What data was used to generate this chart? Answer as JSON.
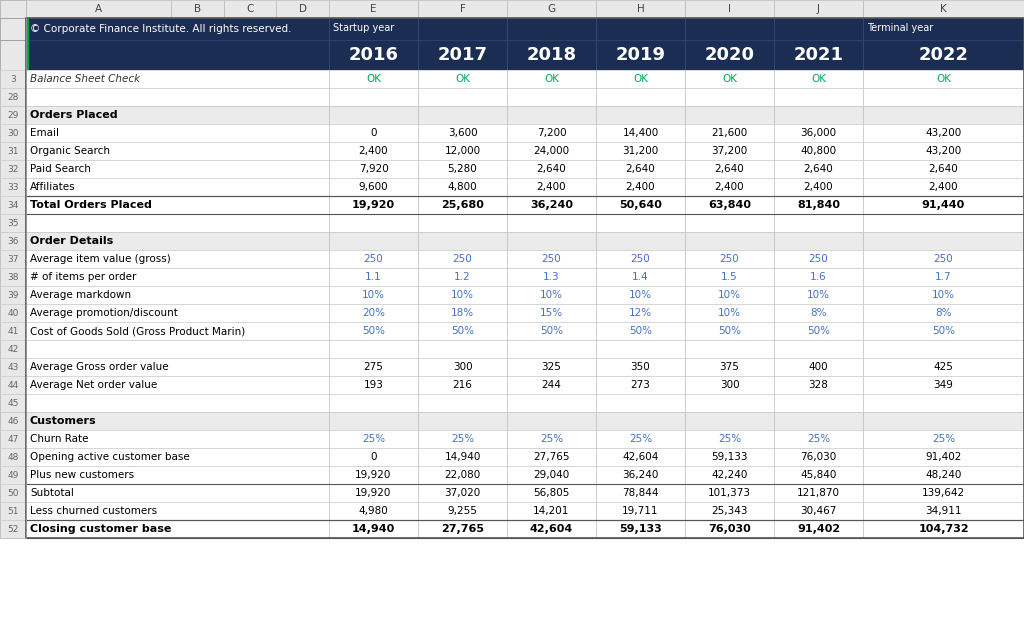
{
  "header_bg": "#1b2d53",
  "ok_color": "#00aa55",
  "blue_color": "#4472c4",
  "col_letters": [
    "A",
    "B",
    "C",
    "D",
    "E",
    "F",
    "G",
    "H",
    "I",
    "J",
    "K"
  ],
  "copyright": "© Corporate Finance Institute. All rights reserved.",
  "startup_label": "Startup year",
  "terminal_label": "Terminal year",
  "rows": [
    {
      "row": "1",
      "label": "",
      "type": "header_top",
      "values": [
        "",
        "",
        "",
        "",
        "",
        "",
        ""
      ]
    },
    {
      "row": "2",
      "label": "",
      "type": "header_years",
      "values": [
        "2016",
        "2017",
        "2018",
        "2019",
        "2020",
        "2021",
        "2022"
      ]
    },
    {
      "row": "3",
      "label": "Balance Sheet Check",
      "type": "ok_row",
      "values": [
        "OK",
        "OK",
        "OK",
        "OK",
        "OK",
        "OK",
        "OK"
      ]
    },
    {
      "row": "28",
      "label": "",
      "type": "empty",
      "values": [
        "",
        "",
        "",
        "",
        "",
        "",
        ""
      ]
    },
    {
      "row": "29",
      "label": "Orders Placed",
      "type": "section_hdr",
      "values": [
        "",
        "",
        "",
        "",
        "",
        "",
        ""
      ]
    },
    {
      "row": "30",
      "label": "Email",
      "type": "normal",
      "values": [
        "0",
        "3,600",
        "7,200",
        "14,400",
        "21,600",
        "36,000",
        "43,200"
      ]
    },
    {
      "row": "31",
      "label": "Organic Search",
      "type": "normal",
      "values": [
        "2,400",
        "12,000",
        "24,000",
        "31,200",
        "37,200",
        "40,800",
        "43,200"
      ]
    },
    {
      "row": "32",
      "label": "Paid Search",
      "type": "normal",
      "values": [
        "7,920",
        "5,280",
        "2,640",
        "2,640",
        "2,640",
        "2,640",
        "2,640"
      ]
    },
    {
      "row": "33",
      "label": "Affiliates",
      "type": "normal_bb",
      "values": [
        "9,600",
        "4,800",
        "2,400",
        "2,400",
        "2,400",
        "2,400",
        "2,400"
      ]
    },
    {
      "row": "34",
      "label": "Total Orders Placed",
      "type": "total",
      "values": [
        "19,920",
        "25,680",
        "36,240",
        "50,640",
        "63,840",
        "81,840",
        "91,440"
      ]
    },
    {
      "row": "35",
      "label": "",
      "type": "empty",
      "values": [
        "",
        "",
        "",
        "",
        "",
        "",
        ""
      ]
    },
    {
      "row": "36",
      "label": "Order Details",
      "type": "section_hdr",
      "values": [
        "",
        "",
        "",
        "",
        "",
        "",
        ""
      ]
    },
    {
      "row": "37",
      "label": "Average item value (gross)",
      "type": "blue",
      "values": [
        "250",
        "250",
        "250",
        "250",
        "250",
        "250",
        "250"
      ]
    },
    {
      "row": "38",
      "label": "# of items per order",
      "type": "blue",
      "values": [
        "1.1",
        "1.2",
        "1.3",
        "1.4",
        "1.5",
        "1.6",
        "1.7"
      ]
    },
    {
      "row": "39",
      "label": "Average markdown",
      "type": "blue",
      "values": [
        "10%",
        "10%",
        "10%",
        "10%",
        "10%",
        "10%",
        "10%"
      ]
    },
    {
      "row": "40",
      "label": "Average promotion/discount",
      "type": "blue",
      "values": [
        "20%",
        "18%",
        "15%",
        "12%",
        "10%",
        "8%",
        "8%"
      ]
    },
    {
      "row": "41",
      "label": "Cost of Goods Sold (Gross Product Marin)",
      "type": "blue",
      "values": [
        "50%",
        "50%",
        "50%",
        "50%",
        "50%",
        "50%",
        "50%"
      ]
    },
    {
      "row": "42",
      "label": "",
      "type": "empty",
      "values": [
        "",
        "",
        "",
        "",
        "",
        "",
        ""
      ]
    },
    {
      "row": "43",
      "label": "Average Gross order value",
      "type": "normal",
      "values": [
        "275",
        "300",
        "325",
        "350",
        "375",
        "400",
        "425"
      ]
    },
    {
      "row": "44",
      "label": "Average Net order value",
      "type": "normal",
      "values": [
        "193",
        "216",
        "244",
        "273",
        "300",
        "328",
        "349"
      ]
    },
    {
      "row": "45",
      "label": "",
      "type": "empty",
      "values": [
        "",
        "",
        "",
        "",
        "",
        "",
        ""
      ]
    },
    {
      "row": "46",
      "label": "Customers",
      "type": "section_hdr",
      "values": [
        "",
        "",
        "",
        "",
        "",
        "",
        ""
      ]
    },
    {
      "row": "47",
      "label": "Churn Rate",
      "type": "blue",
      "values": [
        "25%",
        "25%",
        "25%",
        "25%",
        "25%",
        "25%",
        "25%"
      ]
    },
    {
      "row": "48",
      "label": "Opening active customer base",
      "type": "normal",
      "values": [
        "0",
        "14,940",
        "27,765",
        "42,604",
        "59,133",
        "76,030",
        "91,402"
      ]
    },
    {
      "row": "49",
      "label": "Plus new customers",
      "type": "normal_bb",
      "values": [
        "19,920",
        "22,080",
        "29,040",
        "36,240",
        "42,240",
        "45,840",
        "48,240"
      ]
    },
    {
      "row": "50",
      "label": "Subtotal",
      "type": "normal",
      "values": [
        "19,920",
        "37,020",
        "56,805",
        "78,844",
        "101,373",
        "121,870",
        "139,642"
      ]
    },
    {
      "row": "51",
      "label": "Less churned customers",
      "type": "normal_bb",
      "values": [
        "4,980",
        "9,255",
        "14,201",
        "19,711",
        "25,343",
        "30,467",
        "34,911"
      ]
    },
    {
      "row": "52",
      "label": "Closing customer base",
      "type": "total",
      "values": [
        "14,940",
        "27,765",
        "42,604",
        "59,133",
        "76,030",
        "91,402",
        "104,732"
      ]
    }
  ]
}
